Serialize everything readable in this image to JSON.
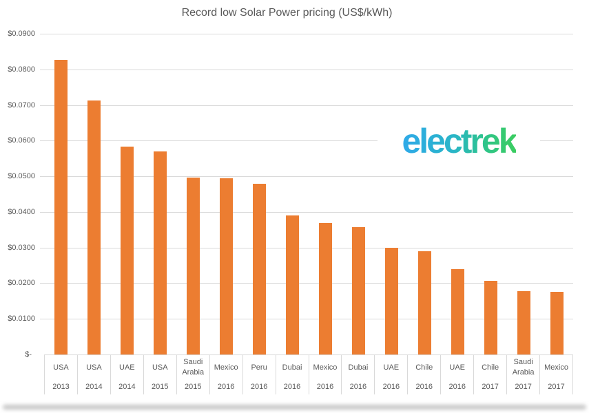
{
  "chart_data": {
    "type": "bar",
    "title": "Record low Solar Power pricing (US$/kWh)",
    "ylabel": "US$/kWh",
    "xlabel": "",
    "categories": [
      {
        "country": "USA",
        "year": "2013"
      },
      {
        "country": "USA",
        "year": "2014"
      },
      {
        "country": "UAE",
        "year": "2014"
      },
      {
        "country": "USA",
        "year": "2015"
      },
      {
        "country": "Saudi Arabia",
        "year": "2015"
      },
      {
        "country": "Mexico",
        "year": "2016"
      },
      {
        "country": "Peru",
        "year": "2016"
      },
      {
        "country": "Dubai",
        "year": "2016"
      },
      {
        "country": "Mexico",
        "year": "2016"
      },
      {
        "country": "Dubai",
        "year": "2016"
      },
      {
        "country": "UAE",
        "year": "2016"
      },
      {
        "country": "Chile",
        "year": "2016"
      },
      {
        "country": "UAE",
        "year": "2016"
      },
      {
        "country": "Chile",
        "year": "2017"
      },
      {
        "country": "Saudi Arabia",
        "year": "2017"
      },
      {
        "country": "Mexico",
        "year": "2017"
      }
    ],
    "values": [
      0.0827,
      0.0713,
      0.0584,
      0.057,
      0.0497,
      0.0495,
      0.048,
      0.039,
      0.0369,
      0.0358,
      0.0299,
      0.029,
      0.024,
      0.0206,
      0.0178,
      0.0176
    ],
    "ylim": [
      0,
      0.09
    ],
    "ytick_step": 0.01,
    "ytick_labels": [
      "$0.0900",
      "$0.0800",
      "$0.0700",
      "$0.0600",
      "$0.0500",
      "$0.0400",
      "$0.0300",
      "$0.0200",
      "$0.0100",
      "$-"
    ],
    "grid": true,
    "legend": "none",
    "bar_color": "#EC7D31",
    "gridline_color": "#D9D9D9",
    "axis_text_color": "#595959",
    "title_color": "#595959"
  },
  "logo": {
    "text": "electrek",
    "gradient_start": "#2FA9E9",
    "gradient_mid1": "#29B5C8",
    "gradient_mid2": "#2EC48C",
    "gradient_end": "#3BCD60"
  },
  "page": {
    "bottom_edge_color": "#C6C6C6"
  }
}
